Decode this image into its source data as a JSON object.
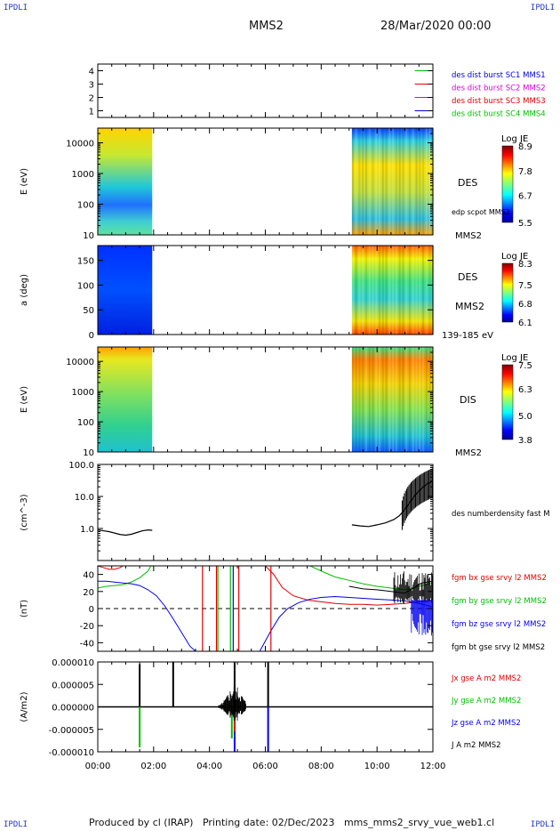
{
  "corner_labels": {
    "tl": "IPDLI",
    "tr": "IPDLI",
    "bl": "IPDLI",
    "br": "IPDLI"
  },
  "header": {
    "spacecraft": "MMS2",
    "datetime": "28/Mar/2020 00:00"
  },
  "footer": {
    "text": "Produced by cl (IRAP)   Printing date: 02/Dec/2023   mms_mms2_srvy_vue_web1.cl"
  },
  "colors": {
    "black": "#000000",
    "red": "#e00000",
    "green": "#00c000",
    "blue": "#0000ee",
    "magenta": "#dd00dd"
  },
  "x_axis": {
    "ticks": [
      "00:00",
      "02:00",
      "04:00",
      "06:00",
      "08:00",
      "10:00",
      "12:00"
    ]
  },
  "chart_data": [
    {
      "type": "line",
      "title": "",
      "ylabel": "",
      "yticks": [
        "1",
        "2",
        "3",
        "4"
      ],
      "ylim": [
        0.5,
        4.5
      ],
      "legend": [
        {
          "text": "des dist burst SC1 MMS1",
          "color": "#0000ee"
        },
        {
          "text": "des dist burst SC2 MMS2",
          "color": "#dd00dd"
        },
        {
          "text": "des dist burst SC3 MMS3",
          "color": "#e00000"
        },
        {
          "text": "des dist burst SC4 MMS4",
          "color": "#00c000"
        }
      ],
      "series": [
        {
          "name": "des dist burst SC4 MMS4",
          "level": 4,
          "x": [
            11.35,
            12.0
          ],
          "color": "#00c000"
        },
        {
          "name": "des dist burst SC3 MMS3",
          "level": 3,
          "x": [
            11.35,
            12.0
          ],
          "color": "#e00000"
        },
        {
          "name": "des dist burst SC2 MMS2",
          "level": 2,
          "x": [
            11.35,
            12.0
          ],
          "color": "#dd00dd"
        },
        {
          "name": "des dist burst SC1 MMS1",
          "level": 1,
          "x": [
            11.35,
            12.0
          ],
          "color": "#0000ee"
        }
      ]
    },
    {
      "type": "heatmap",
      "ylabel": "E (eV)",
      "yscale": "log",
      "ylim": [
        10,
        30000
      ],
      "yticks": [
        "10",
        "100",
        "1000",
        "10000"
      ],
      "colorbar": {
        "title": "Log JE",
        "ticks": [
          "8.9",
          "7.8",
          "6.7",
          "5.5"
        ],
        "range": [
          5.5,
          8.9
        ]
      },
      "labels": [
        "DES",
        "edp scpot MMS2",
        "MMS2"
      ],
      "data_intervals": [
        [
          0.0,
          1.95
        ],
        [
          9.1,
          12.0
        ]
      ]
    },
    {
      "type": "heatmap",
      "ylabel": "a (deg)",
      "ylim": [
        0,
        180
      ],
      "yticks": [
        "0",
        "50",
        "100",
        "150"
      ],
      "colorbar": {
        "title": "Log JE",
        "ticks": [
          "8.3",
          "7.5",
          "6.8",
          "6.1"
        ],
        "range": [
          6.1,
          8.3
        ]
      },
      "labels": [
        "DES",
        "MMS2",
        "139-185 eV"
      ],
      "data_intervals": [
        [
          0.0,
          1.95
        ],
        [
          9.1,
          12.0
        ]
      ]
    },
    {
      "type": "heatmap",
      "ylabel": "E (eV)",
      "yscale": "log",
      "ylim": [
        10,
        30000
      ],
      "yticks": [
        "10",
        "100",
        "1000",
        "10000"
      ],
      "colorbar": {
        "title": "Log JE",
        "ticks": [
          "7.5",
          "6.3",
          "5.0",
          "3.8"
        ],
        "range": [
          3.8,
          7.5
        ]
      },
      "labels": [
        "DIS",
        "MMS2"
      ],
      "data_intervals": [
        [
          0.0,
          1.95
        ],
        [
          9.1,
          12.0
        ]
      ]
    },
    {
      "type": "line",
      "ylabel": "(cm^-3)",
      "yscale": "log",
      "ylim": [
        0.1,
        100
      ],
      "yticks": [
        "1.0",
        "10.0",
        "100.0"
      ],
      "series": [
        {
          "name": "des numberdensity fast M",
          "color": "#000000",
          "x": [
            0.0,
            0.2,
            0.4,
            0.6,
            0.8,
            1.0,
            1.2,
            1.4,
            1.6,
            1.8,
            1.95,
            9.1,
            9.4,
            9.7,
            10.0,
            10.3,
            10.6,
            10.8,
            11.0,
            11.2,
            11.4,
            11.6,
            11.8,
            12.0
          ],
          "y": [
            0.9,
            0.85,
            0.8,
            0.72,
            0.65,
            0.62,
            0.66,
            0.75,
            0.85,
            0.9,
            0.88,
            1.3,
            1.2,
            1.15,
            1.3,
            1.5,
            1.9,
            2.5,
            4,
            7,
            12,
            18,
            25,
            30
          ]
        }
      ]
    },
    {
      "type": "line",
      "ylabel": "(nT)",
      "ylim": [
        -50,
        50
      ],
      "yticks": [
        "-40",
        "-20",
        "0",
        "20",
        "40"
      ],
      "zero_line": true,
      "series": [
        {
          "name": "fgm bx gse srvy l2 MMS2",
          "color": "#e00000",
          "x": [
            0.0,
            0.2,
            0.4,
            0.6,
            0.8,
            0.9,
            6.0,
            6.3,
            6.6,
            7.0,
            7.5,
            8.0,
            8.5,
            9.0,
            9.5,
            10.0,
            10.5,
            11.0,
            11.5,
            12.0
          ],
          "y": [
            50,
            48,
            46,
            46,
            48,
            50,
            50,
            40,
            25,
            15,
            10,
            8,
            6,
            5,
            5,
            4,
            5,
            6,
            8,
            10
          ]
        },
        {
          "name": "fgm by gse srvy l2 MMS2",
          "color": "#00c000",
          "x": [
            0.0,
            0.3,
            0.6,
            0.9,
            1.2,
            1.5,
            1.8,
            1.9,
            7.6,
            8.0,
            8.5,
            9.0,
            9.5,
            10.0,
            10.5,
            11.0,
            11.5,
            12.0
          ],
          "y": [
            24,
            26,
            27,
            28,
            31,
            36,
            44,
            50,
            50,
            44,
            37,
            33,
            29,
            26,
            24,
            22,
            26,
            30
          ]
        },
        {
          "name": "fgm bz gse srvy l2 MMS2",
          "color": "#0000ee",
          "x": [
            0.0,
            0.3,
            0.6,
            0.9,
            1.2,
            1.5,
            1.8,
            2.1,
            2.4,
            2.7,
            3.0,
            3.3,
            3.5,
            5.8,
            6.0,
            6.2,
            6.5,
            6.8,
            7.2,
            7.6,
            8.0,
            8.5,
            9.0,
            9.5,
            10.0,
            10.5,
            11.0,
            11.5,
            12.0
          ],
          "y": [
            32,
            32,
            31,
            30,
            29,
            27,
            22,
            15,
            3,
            -12,
            -28,
            -44,
            -50,
            -50,
            -38,
            -26,
            -10,
            0,
            7,
            11,
            13,
            14,
            13,
            12,
            11,
            10,
            9,
            6,
            2
          ]
        },
        {
          "name": "fgm bt gse srvy l2 MMS2",
          "color": "#000000",
          "x": [
            9.0,
            9.5,
            10.0,
            10.5,
            11.0,
            11.3,
            11.6,
            12.0
          ],
          "y": [
            26,
            23,
            22,
            20,
            18,
            24,
            30,
            32
          ]
        }
      ]
    },
    {
      "type": "line",
      "ylabel": "(A/m2)",
      "ylim": [
        -1e-05,
        1e-05
      ],
      "yticks": [
        "-0.000010",
        "-0.000005",
        "0.000000",
        "0.000005",
        "0.000010"
      ],
      "series": [
        {
          "name": "Jx gse A m2 MMS2",
          "color": "#e00000",
          "spikes": [
            [
              4.9,
              -5.5e-06
            ]
          ]
        },
        {
          "name": "Jy gse A m2 MMS2",
          "color": "#00c000",
          "spikes": [
            [
              1.5,
              -9e-06
            ],
            [
              4.8,
              -7e-06
            ]
          ]
        },
        {
          "name": "Jz gse A m2 MMS2",
          "color": "#0000ee",
          "spikes": [
            [
              4.9,
              -1e-05
            ],
            [
              6.1,
              -1e-05
            ]
          ]
        },
        {
          "name": "J A m2 MMS2",
          "color": "#000000",
          "spikes": [
            [
              1.5,
              9.5e-06
            ],
            [
              2.7,
              1e-05
            ],
            [
              4.9,
              1e-05
            ],
            [
              6.1,
              1e-05
            ]
          ]
        }
      ]
    }
  ]
}
